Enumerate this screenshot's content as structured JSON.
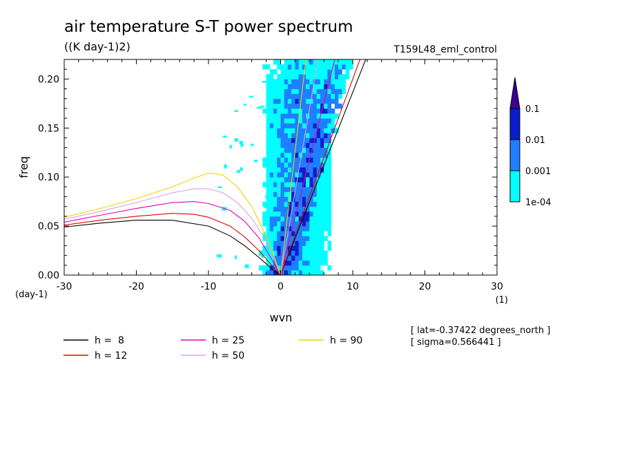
{
  "chart_data": {
    "type": "heatmap",
    "title": "air temperature S-T power spectrum",
    "units": "((K day-1)2)",
    "dataset": "T159L48_eml_control",
    "xlabel": "wvn",
    "ylabel": "freq",
    "x_units": "(1)",
    "y_units": "(day-1)",
    "xlim": [
      -30,
      30
    ],
    "ylim": [
      0,
      0.22
    ],
    "x_ticks": [
      -30,
      -20,
      -10,
      0,
      10,
      20,
      30
    ],
    "x_tick_labels": [
      "-30",
      "-20",
      "-10",
      "0",
      "10",
      "20",
      "30"
    ],
    "y_ticks": [
      0.0,
      0.05,
      0.1,
      0.15,
      0.2
    ],
    "y_tick_labels": [
      "0.00",
      "0.05",
      "0.10",
      "0.15",
      "0.20"
    ],
    "colorbar": {
      "levels": [
        "1e-04",
        "0.001",
        "0.01",
        "0.1"
      ],
      "colors": [
        "#00ffff",
        "#1e7fff",
        "#0a1ecc",
        "#3c0096"
      ]
    },
    "curves": [
      {
        "label": "h =  8",
        "color": "#000000",
        "h": 8
      },
      {
        "label": "h = 12",
        "color": "#e00000",
        "h": 12
      },
      {
        "label": "h = 25",
        "color": "#e000b4",
        "h": 25
      },
      {
        "label": "h = 50",
        "color": "#dc9ee8",
        "h": 50
      },
      {
        "label": "h = 90",
        "color": "#f0d200",
        "h": 90
      }
    ],
    "kelvin_slopes": [
      {
        "h": 8,
        "color": "#000000",
        "freq_at_wvn": [
          [
            0,
            0
          ],
          [
            11.8,
            0.22
          ]
        ]
      },
      {
        "h": 12,
        "color": "#e00000",
        "freq_at_wvn": [
          [
            0,
            0
          ],
          [
            11,
            0.22
          ]
        ]
      },
      {
        "h": 25,
        "color": "#e000b4",
        "freq_at_wvn": [
          [
            0,
            0
          ],
          [
            7.5,
            0.22
          ]
        ]
      },
      {
        "h": 50,
        "color": "#dc9ee8",
        "freq_at_wvn": [
          [
            0,
            0
          ],
          [
            5.2,
            0.22
          ]
        ]
      },
      {
        "h": 90,
        "color": "#f0d200",
        "freq_at_wvn": [
          [
            0,
            0
          ],
          [
            3.5,
            0.22
          ]
        ]
      }
    ],
    "rossby_curves": [
      {
        "h": 8,
        "color": "#000000",
        "points": [
          [
            -30,
            0.049
          ],
          [
            -25,
            0.053
          ],
          [
            -20,
            0.056
          ],
          [
            -15,
            0.056
          ],
          [
            -10,
            0.05
          ],
          [
            -7,
            0.04
          ],
          [
            -5,
            0.03
          ],
          [
            -3,
            0.018
          ],
          [
            -1,
            0.005
          ],
          [
            0,
            0
          ]
        ]
      },
      {
        "h": 12,
        "color": "#e00000",
        "points": [
          [
            -30,
            0.051
          ],
          [
            -25,
            0.056
          ],
          [
            -20,
            0.06
          ],
          [
            -15,
            0.063
          ],
          [
            -12,
            0.062
          ],
          [
            -10,
            0.059
          ],
          [
            -7,
            0.05
          ],
          [
            -5,
            0.039
          ],
          [
            -3,
            0.025
          ],
          [
            -1,
            0.008
          ],
          [
            0,
            0
          ]
        ]
      },
      {
        "h": 25,
        "color": "#e000b4",
        "points": [
          [
            -30,
            0.054
          ],
          [
            -25,
            0.061
          ],
          [
            -20,
            0.068
          ],
          [
            -15,
            0.074
          ],
          [
            -12,
            0.075
          ],
          [
            -10,
            0.073
          ],
          [
            -7,
            0.066
          ],
          [
            -5,
            0.055
          ],
          [
            -3,
            0.038
          ],
          [
            -1,
            0.013
          ],
          [
            0,
            0
          ]
        ]
      },
      {
        "h": 50,
        "color": "#dc9ee8",
        "points": [
          [
            -30,
            0.057
          ],
          [
            -25,
            0.065
          ],
          [
            -20,
            0.074
          ],
          [
            -15,
            0.084
          ],
          [
            -12,
            0.088
          ],
          [
            -10,
            0.088
          ],
          [
            -8,
            0.084
          ],
          [
            -6,
            0.074
          ],
          [
            -4,
            0.058
          ],
          [
            -2,
            0.035
          ],
          [
            -1,
            0.018
          ],
          [
            0,
            0
          ]
        ]
      },
      {
        "h": 90,
        "color": "#f0d200",
        "points": [
          [
            -30,
            0.059
          ],
          [
            -25,
            0.068
          ],
          [
            -20,
            0.078
          ],
          [
            -15,
            0.09
          ],
          [
            -12,
            0.099
          ],
          [
            -10,
            0.104
          ],
          [
            -8,
            0.102
          ],
          [
            -6,
            0.09
          ],
          [
            -4,
            0.07
          ],
          [
            -2,
            0.04
          ],
          [
            -1,
            0.021
          ],
          [
            0,
            0
          ]
        ]
      }
    ],
    "annotation": {
      "lat": "[ lat=-0.37422 degrees_north ]",
      "sigma": "[ sigma=0.566441 ]"
    },
    "grid": false,
    "legend_position": "bottom-left"
  }
}
